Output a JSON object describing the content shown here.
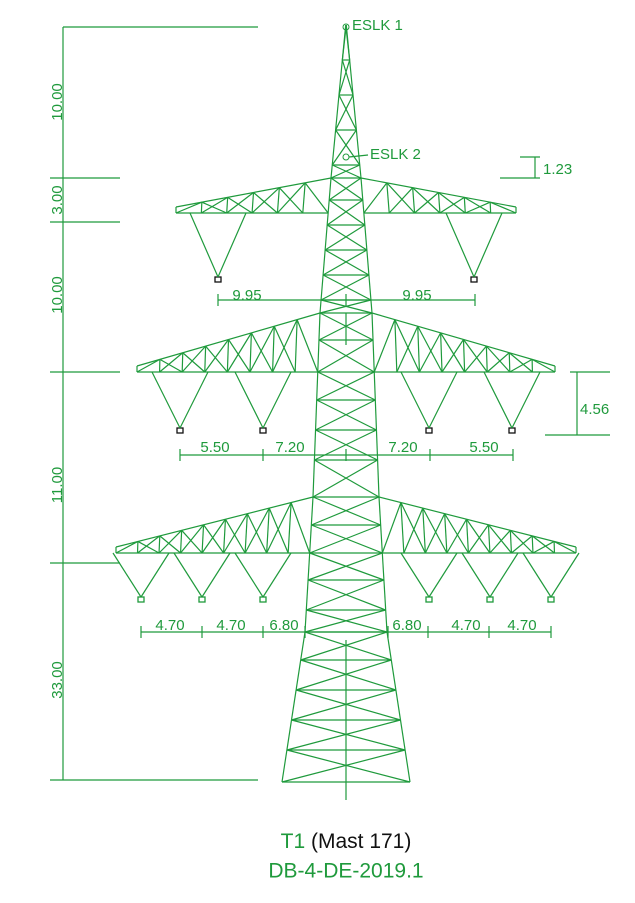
{
  "labels": {
    "eslk1": "ESLK 1",
    "eslk2": "ESLK 2"
  },
  "heights": [
    "10.00",
    "3.00",
    "10.00",
    "11.00",
    "33.00"
  ],
  "offsets": {
    "earth_wire": "1.23",
    "middle_arm": "4.56"
  },
  "spans": {
    "top": [
      "9.95",
      "9.95"
    ],
    "middle": [
      "5.50",
      "7.20",
      "7.20",
      "5.50"
    ],
    "bottom": [
      "4.70",
      "4.70",
      "6.80",
      "6.80",
      "4.70",
      "4.70"
    ]
  },
  "caption": {
    "tower": "T1",
    "mast": "(Mast 171)",
    "code": "DB-4-DE-2019.1"
  }
}
